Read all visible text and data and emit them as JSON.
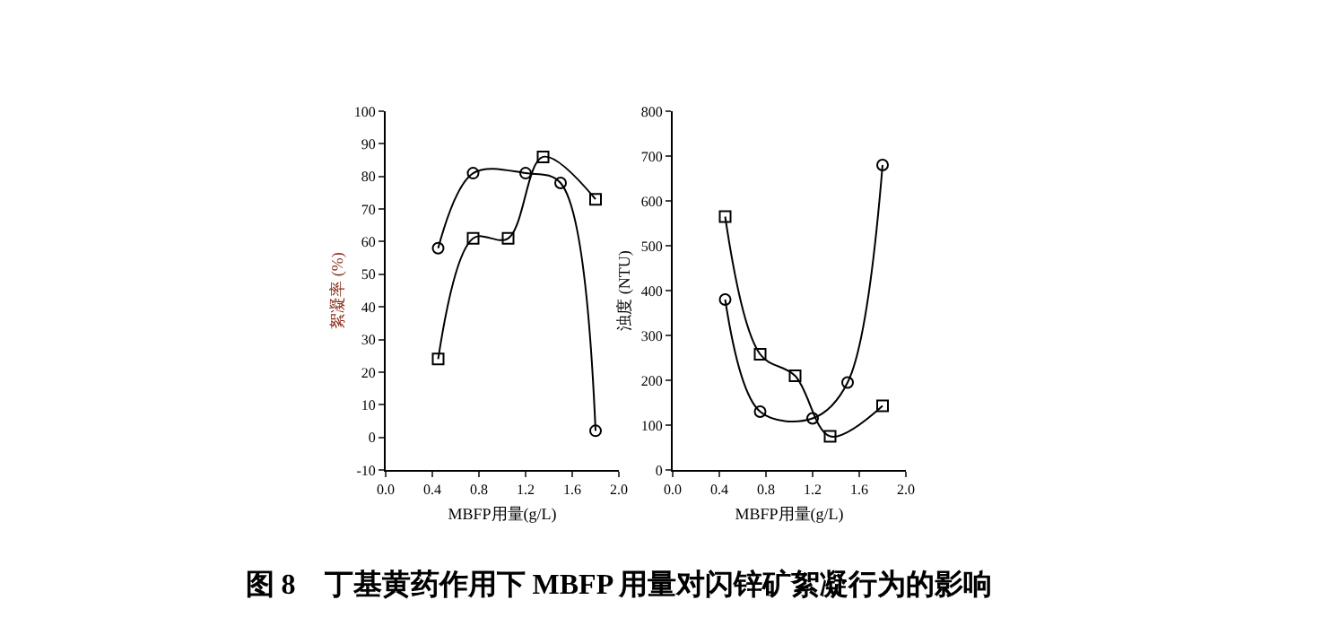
{
  "chart_data": [
    {
      "type": "line",
      "xlabel": "MBFP用量(g/L)",
      "ylabel": "絮凝率 (%)",
      "xlim": [
        0,
        2
      ],
      "ylim": [
        -10,
        100
      ],
      "xticks": [
        {
          "value": 0,
          "label": "0.0"
        },
        {
          "value": 0.4,
          "label": "0.4"
        },
        {
          "value": 0.8,
          "label": "0.8"
        },
        {
          "value": 1.2,
          "label": "1.2"
        },
        {
          "value": 1.6,
          "label": "1.6"
        },
        {
          "value": 2,
          "label": "2.0"
        }
      ],
      "yticks": [
        -10,
        0,
        10,
        20,
        30,
        40,
        50,
        60,
        70,
        80,
        90,
        100
      ],
      "grid": false,
      "series": [
        {
          "color": "#000000",
          "marker": "circle",
          "x": [
            0.45,
            0.75,
            1.2,
            1.5,
            1.8
          ],
          "values": [
            58,
            81,
            81,
            78,
            2
          ]
        },
        {
          "color": "#000000",
          "marker": "square",
          "x": [
            0.45,
            0.75,
            1.05,
            1.35,
            1.8
          ],
          "values": [
            24,
            61,
            61,
            86,
            73
          ]
        }
      ],
      "annotations": [
        "图 8　丁基黄药作用下 MBFP 用量对闪锌矿絮凝行为的影响"
      ]
    },
    {
      "type": "line",
      "xlabel": "MBFP用量(g/L)",
      "ylabel": "浊度 (NTU)",
      "xlim": [
        0,
        2
      ],
      "ylim": [
        0,
        800
      ],
      "xticks": [
        {
          "value": 0,
          "label": "0.0"
        },
        {
          "value": 0.4,
          "label": "0.4"
        },
        {
          "value": 0.8,
          "label": "0.8"
        },
        {
          "value": 1.2,
          "label": "1.2"
        },
        {
          "value": 1.6,
          "label": "1.6"
        },
        {
          "value": 2,
          "label": "2.0"
        }
      ],
      "yticks": [
        0,
        100,
        200,
        300,
        400,
        500,
        600,
        700,
        800
      ],
      "grid": false,
      "series": [
        {
          "color": "#000000",
          "marker": "circle",
          "x": [
            0.45,
            0.75,
            1.2,
            1.5,
            1.8
          ],
          "values": [
            380,
            130,
            115,
            195,
            680
          ]
        },
        {
          "color": "#000000",
          "marker": "square",
          "x": [
            0.45,
            0.75,
            1.05,
            1.35,
            1.8
          ],
          "values": [
            565,
            258,
            210,
            75,
            143
          ]
        }
      ]
    }
  ]
}
